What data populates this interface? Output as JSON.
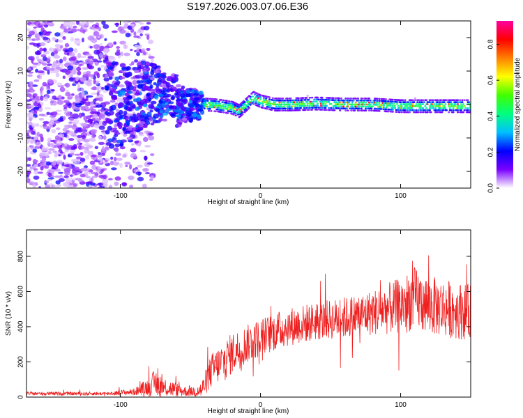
{
  "chart_data": [
    {
      "type": "heatmap",
      "title": "S197.2026.003.07.06.E36",
      "xlabel": "Height of straight line (km)",
      "ylabel": "Frequency (Hz)",
      "xlim": [
        -167,
        150
      ],
      "ylim": [
        -25,
        25
      ],
      "xticks": [
        -100,
        0,
        100
      ],
      "yticks": [
        -20,
        -10,
        0,
        10,
        20
      ],
      "colorbar": {
        "label": "Normalized spectral amplitude",
        "range": [
          0.0,
          0.93
        ],
        "ticks": [
          0.0,
          0.2,
          0.4,
          0.6,
          0.8
        ],
        "colors": [
          "#ffffff",
          "#7a00ff",
          "#0000ff",
          "#00c0ff",
          "#00ff80",
          "#40ff00",
          "#ffff00",
          "#ff8000",
          "#ff0000",
          "#ff00a0"
        ]
      },
      "ridge": {
        "description_values": "dominant frequency near 0 Hz for heights above -40 km",
        "x": [
          -40,
          -30,
          -20,
          -15,
          -10,
          -5,
          0,
          10,
          20,
          40,
          60,
          80,
          100,
          120,
          150
        ],
        "freq": [
          0,
          -0.3,
          -1,
          -2,
          0,
          2,
          1,
          0,
          0,
          0.3,
          0,
          0,
          -0.5,
          -0.5,
          -0.5
        ]
      }
    },
    {
      "type": "line",
      "xlabel": "Height of straight line (km)",
      "ylabel": "SNR (10 * v/v)",
      "xlim": [
        -167,
        150
      ],
      "ylim": [
        0,
        950
      ],
      "xticks": [
        -100,
        0,
        100
      ],
      "yticks": [
        0,
        200,
        400,
        600,
        800
      ],
      "color": "#ee2020",
      "envelope": {
        "x": [
          -167,
          -110,
          -90,
          -80,
          -75,
          -70,
          -60,
          -50,
          -42,
          -35,
          -20,
          -10,
          0,
          20,
          40,
          60,
          80,
          100,
          110,
          120,
          150
        ],
        "mean": [
          20,
          20,
          30,
          60,
          80,
          60,
          40,
          30,
          40,
          150,
          250,
          300,
          340,
          400,
          430,
          450,
          480,
          520,
          560,
          520,
          480
        ],
        "spread": [
          10,
          10,
          20,
          50,
          80,
          60,
          40,
          25,
          50,
          100,
          120,
          110,
          110,
          110,
          110,
          120,
          130,
          160,
          180,
          170,
          160
        ]
      }
    }
  ]
}
